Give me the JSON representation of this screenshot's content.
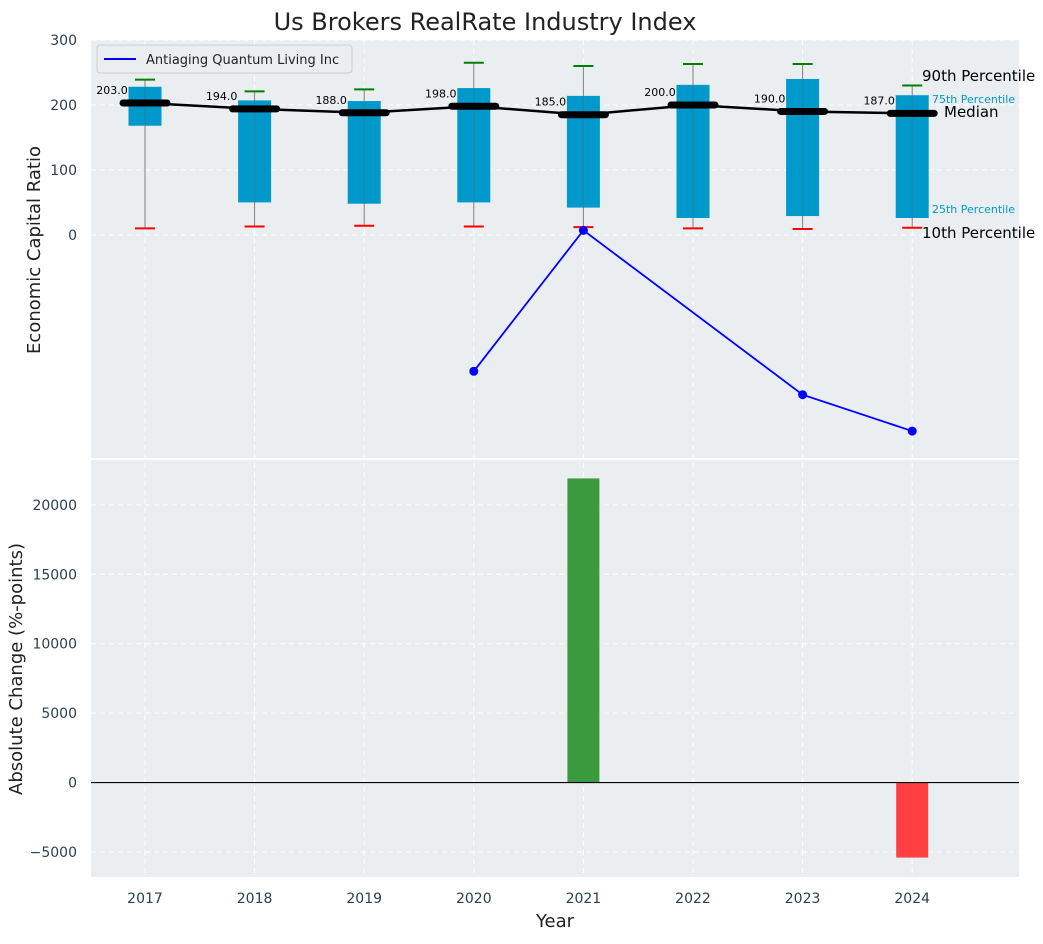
{
  "chart_data": [
    {
      "type": "box",
      "title": "Us Brokers RealRate Industry Index",
      "ylabel": "Economic Capital Ratio",
      "categories": [
        "2017",
        "2018",
        "2019",
        "2020",
        "2021",
        "2022",
        "2023",
        "2024"
      ],
      "yticks": [
        0,
        100,
        200,
        300
      ],
      "ylim": [
        -345,
        300
      ],
      "grid": true,
      "percentiles": {
        "p10": [
          10,
          13,
          14,
          13,
          12,
          10,
          9,
          11
        ],
        "p25": [
          168,
          50,
          48,
          50,
          42,
          26,
          29,
          26
        ],
        "median": [
          203,
          194,
          188,
          198,
          185,
          200,
          190,
          187
        ],
        "p75": [
          228,
          207,
          206,
          226,
          214,
          231,
          240,
          215
        ],
        "p90": [
          239,
          221,
          224,
          265,
          260,
          263,
          263,
          230
        ]
      },
      "median_labels": [
        "203.0",
        "194.0",
        "188.0",
        "198.0",
        "185.0",
        "200.0",
        "190.0",
        "187.0"
      ],
      "series": [
        {
          "name": "Antiaging Quantum Living Inc",
          "x": [
            "2020",
            "2021",
            "2023",
            "2024"
          ],
          "values": [
            -210,
            7,
            -246,
            -302
          ],
          "color": "#0000ff"
        }
      ],
      "legend": {
        "entries": [
          "Antiaging Quantum Living Inc"
        ],
        "position": "top-left"
      },
      "annotations": {
        "p90": "90th Percentile",
        "p75": "75th Percentile",
        "median": "Median",
        "p25": "25th Percentile",
        "p10": "10th Percentile"
      },
      "colors": {
        "box": "#0099cc",
        "p90_cap": "#008000",
        "p10_cap": "#ff0000",
        "median": "#000000",
        "background": "#eaeef0"
      }
    },
    {
      "type": "bar",
      "ylabel": "Absolute Change (%-points)",
      "xlabel": "Year",
      "categories": [
        "2017",
        "2018",
        "2019",
        "2020",
        "2021",
        "2022",
        "2023",
        "2024"
      ],
      "values": [
        null,
        null,
        null,
        null,
        21900,
        null,
        null,
        -5400
      ],
      "yticks": [
        -5000,
        0,
        5000,
        10000,
        15000,
        20000
      ],
      "ylim": [
        -6800,
        23300
      ],
      "grid": true,
      "colors": {
        "positive": "#3a9a3d",
        "negative": "#ff4040"
      }
    }
  ]
}
